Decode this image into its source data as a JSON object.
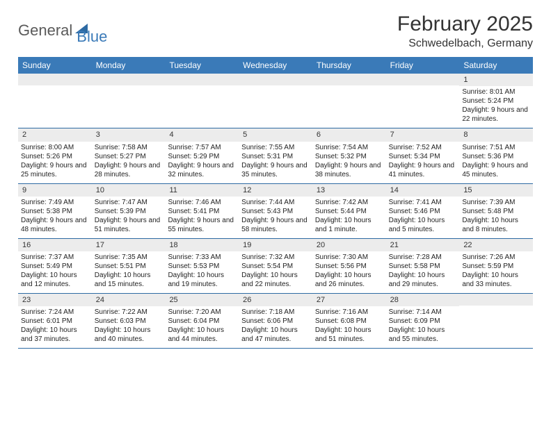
{
  "brand": {
    "part1": "General",
    "part2": "Blue"
  },
  "title": "February 2025",
  "location": "Schwedelbach, Germany",
  "header_bg": "#3a7ab8",
  "rule_color": "#2d6aa3",
  "daynum_bg": "#ececec",
  "days": [
    "Sunday",
    "Monday",
    "Tuesday",
    "Wednesday",
    "Thursday",
    "Friday",
    "Saturday"
  ],
  "weeks": [
    [
      null,
      null,
      null,
      null,
      null,
      null,
      {
        "n": "1",
        "sr": "Sunrise: 8:01 AM",
        "ss": "Sunset: 5:24 PM",
        "dl": "Daylight: 9 hours and 22 minutes."
      }
    ],
    [
      {
        "n": "2",
        "sr": "Sunrise: 8:00 AM",
        "ss": "Sunset: 5:26 PM",
        "dl": "Daylight: 9 hours and 25 minutes."
      },
      {
        "n": "3",
        "sr": "Sunrise: 7:58 AM",
        "ss": "Sunset: 5:27 PM",
        "dl": "Daylight: 9 hours and 28 minutes."
      },
      {
        "n": "4",
        "sr": "Sunrise: 7:57 AM",
        "ss": "Sunset: 5:29 PM",
        "dl": "Daylight: 9 hours and 32 minutes."
      },
      {
        "n": "5",
        "sr": "Sunrise: 7:55 AM",
        "ss": "Sunset: 5:31 PM",
        "dl": "Daylight: 9 hours and 35 minutes."
      },
      {
        "n": "6",
        "sr": "Sunrise: 7:54 AM",
        "ss": "Sunset: 5:32 PM",
        "dl": "Daylight: 9 hours and 38 minutes."
      },
      {
        "n": "7",
        "sr": "Sunrise: 7:52 AM",
        "ss": "Sunset: 5:34 PM",
        "dl": "Daylight: 9 hours and 41 minutes."
      },
      {
        "n": "8",
        "sr": "Sunrise: 7:51 AM",
        "ss": "Sunset: 5:36 PM",
        "dl": "Daylight: 9 hours and 45 minutes."
      }
    ],
    [
      {
        "n": "9",
        "sr": "Sunrise: 7:49 AM",
        "ss": "Sunset: 5:38 PM",
        "dl": "Daylight: 9 hours and 48 minutes."
      },
      {
        "n": "10",
        "sr": "Sunrise: 7:47 AM",
        "ss": "Sunset: 5:39 PM",
        "dl": "Daylight: 9 hours and 51 minutes."
      },
      {
        "n": "11",
        "sr": "Sunrise: 7:46 AM",
        "ss": "Sunset: 5:41 PM",
        "dl": "Daylight: 9 hours and 55 minutes."
      },
      {
        "n": "12",
        "sr": "Sunrise: 7:44 AM",
        "ss": "Sunset: 5:43 PM",
        "dl": "Daylight: 9 hours and 58 minutes."
      },
      {
        "n": "13",
        "sr": "Sunrise: 7:42 AM",
        "ss": "Sunset: 5:44 PM",
        "dl": "Daylight: 10 hours and 1 minute."
      },
      {
        "n": "14",
        "sr": "Sunrise: 7:41 AM",
        "ss": "Sunset: 5:46 PM",
        "dl": "Daylight: 10 hours and 5 minutes."
      },
      {
        "n": "15",
        "sr": "Sunrise: 7:39 AM",
        "ss": "Sunset: 5:48 PM",
        "dl": "Daylight: 10 hours and 8 minutes."
      }
    ],
    [
      {
        "n": "16",
        "sr": "Sunrise: 7:37 AM",
        "ss": "Sunset: 5:49 PM",
        "dl": "Daylight: 10 hours and 12 minutes."
      },
      {
        "n": "17",
        "sr": "Sunrise: 7:35 AM",
        "ss": "Sunset: 5:51 PM",
        "dl": "Daylight: 10 hours and 15 minutes."
      },
      {
        "n": "18",
        "sr": "Sunrise: 7:33 AM",
        "ss": "Sunset: 5:53 PM",
        "dl": "Daylight: 10 hours and 19 minutes."
      },
      {
        "n": "19",
        "sr": "Sunrise: 7:32 AM",
        "ss": "Sunset: 5:54 PM",
        "dl": "Daylight: 10 hours and 22 minutes."
      },
      {
        "n": "20",
        "sr": "Sunrise: 7:30 AM",
        "ss": "Sunset: 5:56 PM",
        "dl": "Daylight: 10 hours and 26 minutes."
      },
      {
        "n": "21",
        "sr": "Sunrise: 7:28 AM",
        "ss": "Sunset: 5:58 PM",
        "dl": "Daylight: 10 hours and 29 minutes."
      },
      {
        "n": "22",
        "sr": "Sunrise: 7:26 AM",
        "ss": "Sunset: 5:59 PM",
        "dl": "Daylight: 10 hours and 33 minutes."
      }
    ],
    [
      {
        "n": "23",
        "sr": "Sunrise: 7:24 AM",
        "ss": "Sunset: 6:01 PM",
        "dl": "Daylight: 10 hours and 37 minutes."
      },
      {
        "n": "24",
        "sr": "Sunrise: 7:22 AM",
        "ss": "Sunset: 6:03 PM",
        "dl": "Daylight: 10 hours and 40 minutes."
      },
      {
        "n": "25",
        "sr": "Sunrise: 7:20 AM",
        "ss": "Sunset: 6:04 PM",
        "dl": "Daylight: 10 hours and 44 minutes."
      },
      {
        "n": "26",
        "sr": "Sunrise: 7:18 AM",
        "ss": "Sunset: 6:06 PM",
        "dl": "Daylight: 10 hours and 47 minutes."
      },
      {
        "n": "27",
        "sr": "Sunrise: 7:16 AM",
        "ss": "Sunset: 6:08 PM",
        "dl": "Daylight: 10 hours and 51 minutes."
      },
      {
        "n": "28",
        "sr": "Sunrise: 7:14 AM",
        "ss": "Sunset: 6:09 PM",
        "dl": "Daylight: 10 hours and 55 minutes."
      },
      null
    ]
  ]
}
